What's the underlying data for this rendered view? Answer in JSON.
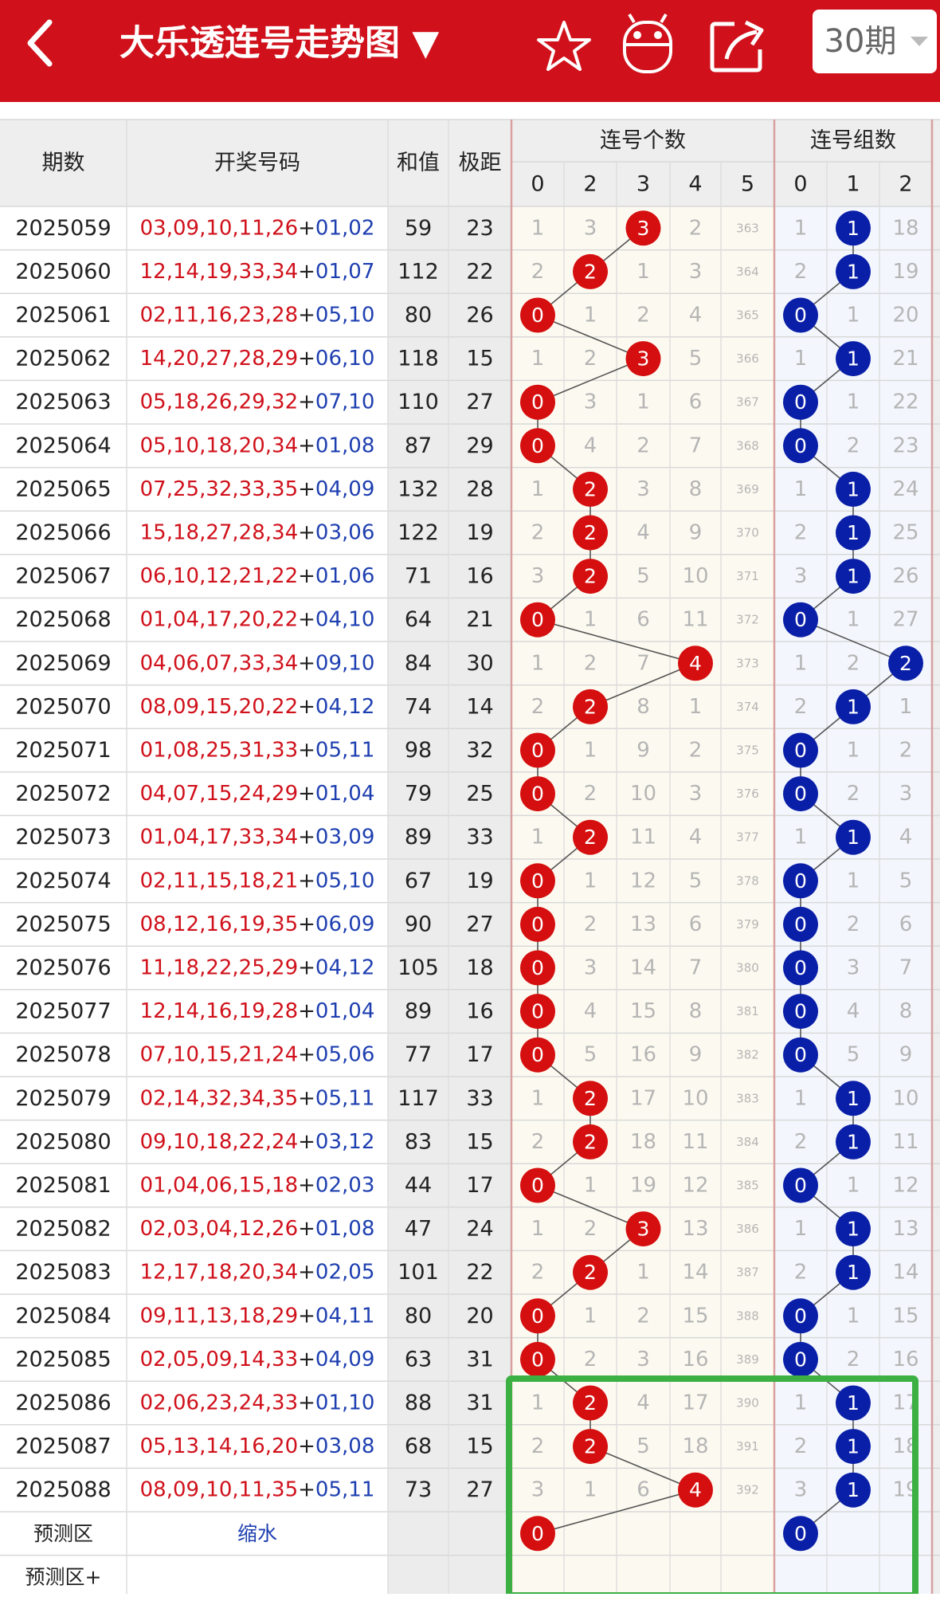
{
  "header": {
    "title": "大乐透连号走势图 ▼",
    "period_select": "30期"
  },
  "table": {
    "col_period": "期数",
    "col_numbers": "开奖号码",
    "col_sum": "和值",
    "col_span": "极距",
    "group_count": "连号个数",
    "group_groups": "连号组数",
    "count_columns": [
      0,
      2,
      3,
      4,
      5
    ],
    "group_columns": [
      0,
      1,
      2
    ],
    "separator": "+",
    "rows": [
      {
        "period": "2025059",
        "red": "03,09,10,11,26",
        "blue": "01,02",
        "sum": 59,
        "span": 23,
        "counts": [
          1,
          3,
          3,
          2,
          363
        ],
        "count_hit": 2,
        "groups": [
          1,
          1,
          18
        ],
        "group_hit": 1
      },
      {
        "period": "2025060",
        "red": "12,14,19,33,34",
        "blue": "01,07",
        "sum": 112,
        "span": 22,
        "counts": [
          2,
          2,
          1,
          3,
          364
        ],
        "count_hit": 1,
        "groups": [
          2,
          1,
          19
        ],
        "group_hit": 1
      },
      {
        "period": "2025061",
        "red": "02,11,16,23,28",
        "blue": "05,10",
        "sum": 80,
        "span": 26,
        "counts": [
          0,
          1,
          2,
          4,
          365
        ],
        "count_hit": 0,
        "groups": [
          0,
          1,
          20
        ],
        "group_hit": 0
      },
      {
        "period": "2025062",
        "red": "14,20,27,28,29",
        "blue": "06,10",
        "sum": 118,
        "span": 15,
        "counts": [
          1,
          2,
          3,
          5,
          366
        ],
        "count_hit": 2,
        "groups": [
          1,
          1,
          21
        ],
        "group_hit": 1
      },
      {
        "period": "2025063",
        "red": "05,18,26,29,32",
        "blue": "07,10",
        "sum": 110,
        "span": 27,
        "counts": [
          0,
          3,
          1,
          6,
          367
        ],
        "count_hit": 0,
        "groups": [
          0,
          1,
          22
        ],
        "group_hit": 0
      },
      {
        "period": "2025064",
        "red": "05,10,18,20,34",
        "blue": "01,08",
        "sum": 87,
        "span": 29,
        "counts": [
          0,
          4,
          2,
          7,
          368
        ],
        "count_hit": 0,
        "groups": [
          0,
          2,
          23
        ],
        "group_hit": 0
      },
      {
        "period": "2025065",
        "red": "07,25,32,33,35",
        "blue": "04,09",
        "sum": 132,
        "span": 28,
        "counts": [
          1,
          2,
          3,
          8,
          369
        ],
        "count_hit": 1,
        "groups": [
          1,
          1,
          24
        ],
        "group_hit": 1
      },
      {
        "period": "2025066",
        "red": "15,18,27,28,34",
        "blue": "03,06",
        "sum": 122,
        "span": 19,
        "counts": [
          2,
          2,
          4,
          9,
          370
        ],
        "count_hit": 1,
        "groups": [
          2,
          1,
          25
        ],
        "group_hit": 1
      },
      {
        "period": "2025067",
        "red": "06,10,12,21,22",
        "blue": "01,06",
        "sum": 71,
        "span": 16,
        "counts": [
          3,
          2,
          5,
          10,
          371
        ],
        "count_hit": 1,
        "groups": [
          3,
          1,
          26
        ],
        "group_hit": 1
      },
      {
        "period": "2025068",
        "red": "01,04,17,20,22",
        "blue": "04,10",
        "sum": 64,
        "span": 21,
        "counts": [
          0,
          1,
          6,
          11,
          372
        ],
        "count_hit": 0,
        "groups": [
          0,
          1,
          27
        ],
        "group_hit": 0
      },
      {
        "period": "2025069",
        "red": "04,06,07,33,34",
        "blue": "09,10",
        "sum": 84,
        "span": 30,
        "counts": [
          1,
          2,
          7,
          4,
          373
        ],
        "count_hit": 3,
        "groups": [
          1,
          2,
          2
        ],
        "group_hit": 2
      },
      {
        "period": "2025070",
        "red": "08,09,15,20,22",
        "blue": "04,12",
        "sum": 74,
        "span": 14,
        "counts": [
          2,
          2,
          8,
          1,
          374
        ],
        "count_hit": 1,
        "groups": [
          2,
          1,
          1
        ],
        "group_hit": 1
      },
      {
        "period": "2025071",
        "red": "01,08,25,31,33",
        "blue": "05,11",
        "sum": 98,
        "span": 32,
        "counts": [
          0,
          1,
          9,
          2,
          375
        ],
        "count_hit": 0,
        "groups": [
          0,
          1,
          2
        ],
        "group_hit": 0
      },
      {
        "period": "2025072",
        "red": "04,07,15,24,29",
        "blue": "01,04",
        "sum": 79,
        "span": 25,
        "counts": [
          0,
          2,
          10,
          3,
          376
        ],
        "count_hit": 0,
        "groups": [
          0,
          2,
          3
        ],
        "group_hit": 0
      },
      {
        "period": "2025073",
        "red": "01,04,17,33,34",
        "blue": "03,09",
        "sum": 89,
        "span": 33,
        "counts": [
          1,
          2,
          11,
          4,
          377
        ],
        "count_hit": 1,
        "groups": [
          1,
          1,
          4
        ],
        "group_hit": 1
      },
      {
        "period": "2025074",
        "red": "02,11,15,18,21",
        "blue": "05,10",
        "sum": 67,
        "span": 19,
        "counts": [
          0,
          1,
          12,
          5,
          378
        ],
        "count_hit": 0,
        "groups": [
          0,
          1,
          5
        ],
        "group_hit": 0
      },
      {
        "period": "2025075",
        "red": "08,12,16,19,35",
        "blue": "06,09",
        "sum": 90,
        "span": 27,
        "counts": [
          0,
          2,
          13,
          6,
          379
        ],
        "count_hit": 0,
        "groups": [
          0,
          2,
          6
        ],
        "group_hit": 0
      },
      {
        "period": "2025076",
        "red": "11,18,22,25,29",
        "blue": "04,12",
        "sum": 105,
        "span": 18,
        "counts": [
          0,
          3,
          14,
          7,
          380
        ],
        "count_hit": 0,
        "groups": [
          0,
          3,
          7
        ],
        "group_hit": 0
      },
      {
        "period": "2025077",
        "red": "12,14,16,19,28",
        "blue": "01,04",
        "sum": 89,
        "span": 16,
        "counts": [
          0,
          4,
          15,
          8,
          381
        ],
        "count_hit": 0,
        "groups": [
          0,
          4,
          8
        ],
        "group_hit": 0
      },
      {
        "period": "2025078",
        "red": "07,10,15,21,24",
        "blue": "05,06",
        "sum": 77,
        "span": 17,
        "counts": [
          0,
          5,
          16,
          9,
          382
        ],
        "count_hit": 0,
        "groups": [
          0,
          5,
          9
        ],
        "group_hit": 0
      },
      {
        "period": "2025079",
        "red": "02,14,32,34,35",
        "blue": "05,11",
        "sum": 117,
        "span": 33,
        "counts": [
          1,
          2,
          17,
          10,
          383
        ],
        "count_hit": 1,
        "groups": [
          1,
          1,
          10
        ],
        "group_hit": 1
      },
      {
        "period": "2025080",
        "red": "09,10,18,22,24",
        "blue": "03,12",
        "sum": 83,
        "span": 15,
        "counts": [
          2,
          2,
          18,
          11,
          384
        ],
        "count_hit": 1,
        "groups": [
          2,
          1,
          11
        ],
        "group_hit": 1
      },
      {
        "period": "2025081",
        "red": "01,04,06,15,18",
        "blue": "02,03",
        "sum": 44,
        "span": 17,
        "counts": [
          0,
          1,
          19,
          12,
          385
        ],
        "count_hit": 0,
        "groups": [
          0,
          1,
          12
        ],
        "group_hit": 0
      },
      {
        "period": "2025082",
        "red": "02,03,04,12,26",
        "blue": "01,08",
        "sum": 47,
        "span": 24,
        "counts": [
          1,
          2,
          3,
          13,
          386
        ],
        "count_hit": 2,
        "groups": [
          1,
          1,
          13
        ],
        "group_hit": 1
      },
      {
        "period": "2025083",
        "red": "12,17,18,20,34",
        "blue": "02,05",
        "sum": 101,
        "span": 22,
        "counts": [
          2,
          2,
          1,
          14,
          387
        ],
        "count_hit": 1,
        "groups": [
          2,
          1,
          14
        ],
        "group_hit": 1
      },
      {
        "period": "2025084",
        "red": "09,11,13,18,29",
        "blue": "04,11",
        "sum": 80,
        "span": 20,
        "counts": [
          0,
          1,
          2,
          15,
          388
        ],
        "count_hit": 0,
        "groups": [
          0,
          1,
          15
        ],
        "group_hit": 0
      },
      {
        "period": "2025085",
        "red": "02,05,09,14,33",
        "blue": "04,09",
        "sum": 63,
        "span": 31,
        "counts": [
          0,
          2,
          3,
          16,
          389
        ],
        "count_hit": 0,
        "groups": [
          0,
          2,
          16
        ],
        "group_hit": 0
      },
      {
        "period": "2025086",
        "red": "02,06,23,24,33",
        "blue": "01,10",
        "sum": 88,
        "span": 31,
        "counts": [
          1,
          2,
          4,
          17,
          390
        ],
        "count_hit": 1,
        "groups": [
          1,
          1,
          17
        ],
        "group_hit": 1
      },
      {
        "period": "2025087",
        "red": "05,13,14,16,20",
        "blue": "03,08",
        "sum": 68,
        "span": 15,
        "counts": [
          2,
          2,
          5,
          18,
          391
        ],
        "count_hit": 1,
        "groups": [
          2,
          1,
          18
        ],
        "group_hit": 1
      },
      {
        "period": "2025088",
        "red": "08,09,10,11,35",
        "blue": "05,11",
        "sum": 73,
        "span": 27,
        "counts": [
          3,
          1,
          6,
          4,
          392
        ],
        "count_hit": 3,
        "groups": [
          3,
          1,
          19
        ],
        "group_hit": 1
      }
    ],
    "prediction": {
      "label": "预测区",
      "note": "缩水",
      "count_value": 0,
      "count_hit": 0,
      "group_value": 0,
      "group_hit": 0
    },
    "prediction_plus": {
      "label": "预测区+"
    }
  }
}
